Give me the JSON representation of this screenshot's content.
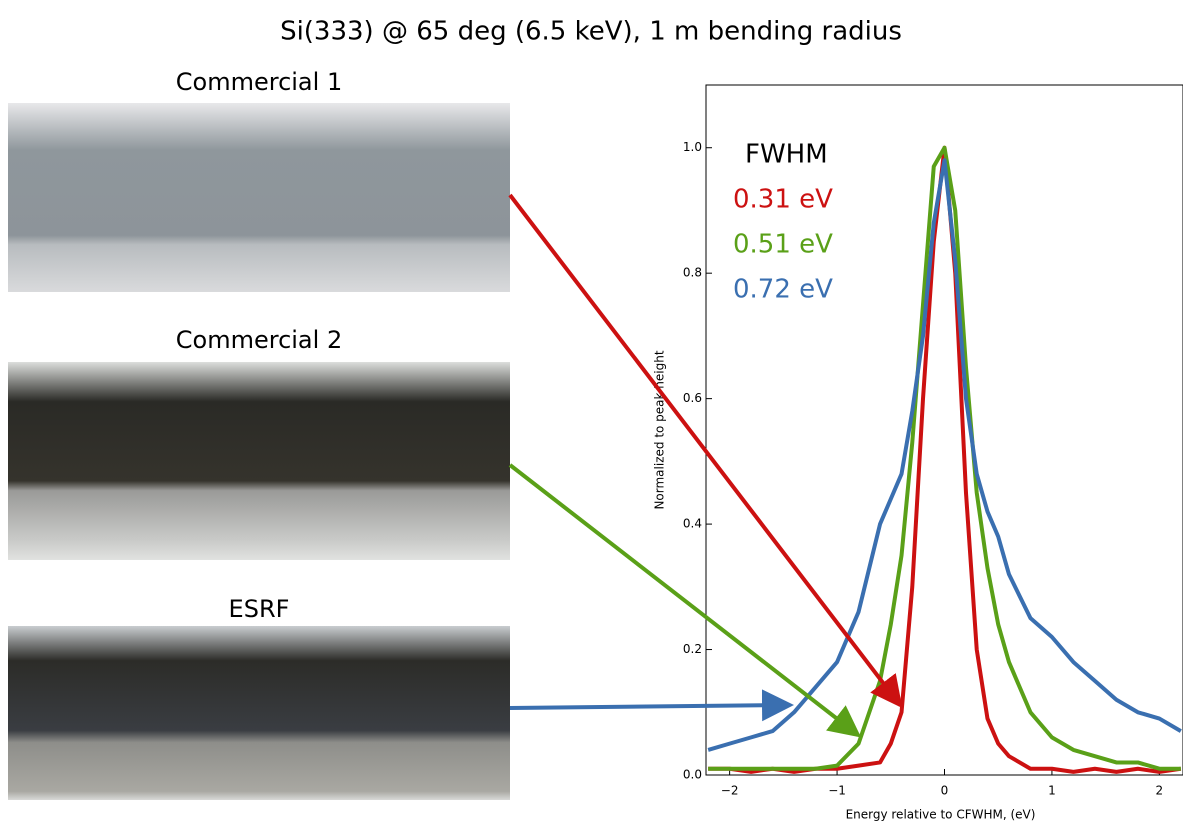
{
  "header": {
    "title": "Si(333) @ 65 deg (6.5 keV), 1 m bending radius"
  },
  "photos": [
    {
      "label": "Commercial 1"
    },
    {
      "label": "Commercial 2"
    },
    {
      "label": "ESRF"
    }
  ],
  "chart_data": {
    "type": "line",
    "x_label": "Energy relative to CFWHM, (eV)",
    "y_label": "Normalized to peak height",
    "legend_title": "FWHM",
    "x": [
      -2.2,
      -2,
      -1.8,
      -1.6,
      -1.4,
      -1.2,
      -1,
      -0.8,
      -0.6,
      -0.5,
      -0.4,
      -0.3,
      -0.2,
      -0.1,
      0,
      0.1,
      0.2,
      0.3,
      0.4,
      0.5,
      0.6,
      0.8,
      1,
      1.2,
      1.4,
      1.6,
      1.8,
      2,
      2.2
    ],
    "series": [
      {
        "name": "0.31 eV",
        "color": "#cc1111",
        "values": [
          0.01,
          0.01,
          0.005,
          0.01,
          0.005,
          0.01,
          0.01,
          0.015,
          0.02,
          0.05,
          0.1,
          0.3,
          0.6,
          0.85,
          1.0,
          0.8,
          0.45,
          0.2,
          0.09,
          0.05,
          0.03,
          0.01,
          0.01,
          0.005,
          0.01,
          0.005,
          0.01,
          0.005,
          0.01
        ]
      },
      {
        "name": "0.51 eV",
        "color": "#5aa018",
        "values": [
          0.01,
          0.01,
          0.01,
          0.01,
          0.01,
          0.01,
          0.015,
          0.05,
          0.15,
          0.24,
          0.35,
          0.53,
          0.75,
          0.97,
          1.0,
          0.9,
          0.65,
          0.45,
          0.33,
          0.24,
          0.18,
          0.1,
          0.06,
          0.04,
          0.03,
          0.02,
          0.02,
          0.01,
          0.01
        ]
      },
      {
        "name": "0.72 eV",
        "color": "#3a6fb0",
        "values": [
          0.04,
          0.05,
          0.06,
          0.07,
          0.1,
          0.14,
          0.18,
          0.26,
          0.4,
          0.44,
          0.48,
          0.58,
          0.7,
          0.88,
          0.98,
          0.82,
          0.6,
          0.48,
          0.42,
          0.38,
          0.32,
          0.25,
          0.22,
          0.18,
          0.15,
          0.12,
          0.1,
          0.09,
          0.07
        ]
      }
    ],
    "xlim": [
      -2.22,
      2.22
    ],
    "ylim": [
      0,
      1.1
    ],
    "xticks": [
      {
        "value": -2,
        "label": "−2"
      },
      {
        "value": -1,
        "label": "−1"
      },
      0,
      1,
      2
    ],
    "yticks": [
      {
        "value": 0,
        "label": "0.0"
      },
      {
        "value": 0.2,
        "label": "0.2"
      },
      {
        "value": 0.4,
        "label": "0.4"
      },
      {
        "value": 0.6,
        "label": "0.6"
      },
      {
        "value": 0.8,
        "label": "0.8"
      },
      {
        "value": 1.0,
        "label": "1.0"
      }
    ]
  }
}
